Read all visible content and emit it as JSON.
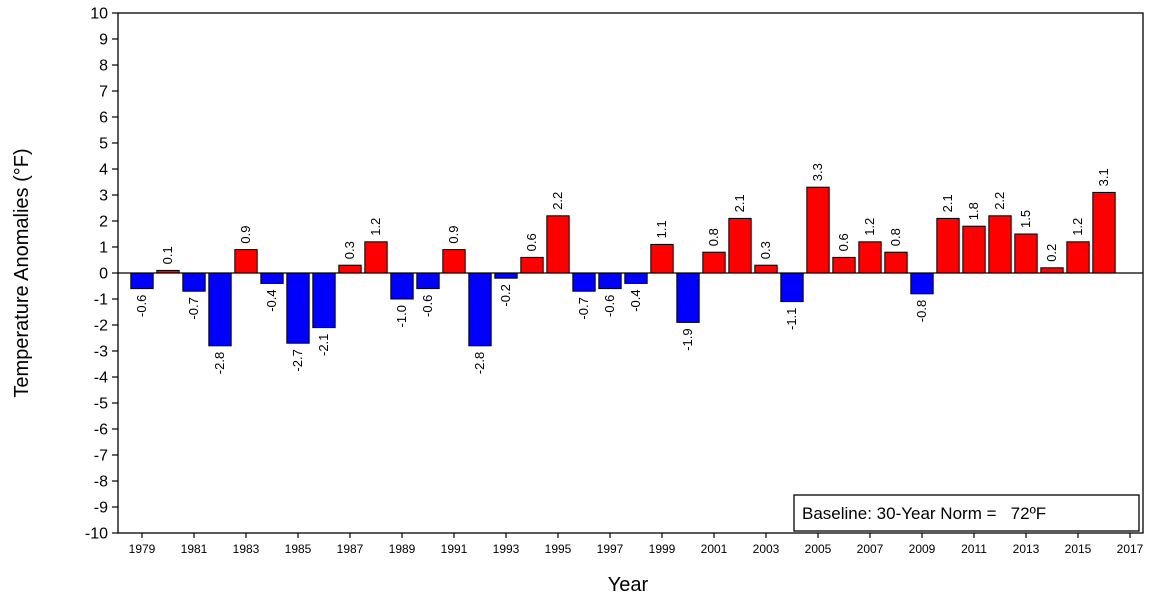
{
  "chart_data": {
    "type": "bar",
    "xlabel": "Year",
    "ylabel": "Temperature Anomalies (°F)",
    "ylim": [
      -10,
      10
    ],
    "yticks": [
      "10",
      "9",
      "8",
      "7",
      "6",
      "5",
      "4",
      "3",
      "2",
      "1",
      "0",
      "-1",
      "-2",
      "-3",
      "-4",
      "-5",
      "-6",
      "-7",
      "-8",
      "-9",
      "-10"
    ],
    "xticks": [
      "1979",
      "1981",
      "1983",
      "1985",
      "1987",
      "1989",
      "1991",
      "1993",
      "1995",
      "1997",
      "1999",
      "2001",
      "2003",
      "2005",
      "2007",
      "2009",
      "2011",
      "2013",
      "2015",
      "2017"
    ],
    "categories": [
      1979,
      1980,
      1981,
      1982,
      1983,
      1984,
      1985,
      1986,
      1987,
      1988,
      1989,
      1990,
      1991,
      1992,
      1993,
      1994,
      1995,
      1996,
      1997,
      1998,
      1999,
      2000,
      2001,
      2002,
      2003,
      2004,
      2005,
      2006,
      2007,
      2008,
      2009,
      2010,
      2011,
      2012,
      2013,
      2014,
      2015,
      2016
    ],
    "values": [
      -0.6,
      0.1,
      -0.7,
      -2.8,
      0.9,
      -0.4,
      -2.7,
      -2.1,
      0.3,
      1.2,
      -1.0,
      -0.6,
      0.9,
      -2.8,
      -0.2,
      0.6,
      2.2,
      -0.7,
      -0.6,
      -0.4,
      1.1,
      -1.9,
      0.8,
      2.1,
      0.3,
      -1.1,
      3.3,
      0.6,
      1.2,
      0.8,
      -0.8,
      2.1,
      1.8,
      2.2,
      1.5,
      0.2,
      1.2,
      3.1
    ],
    "labels": [
      "-0.6",
      "0.1",
      "-0.7",
      "-2.8",
      "0.9",
      "-0.4",
      "-2.7",
      "-2.1",
      "0.3",
      "1.2",
      "-1.0",
      "-0.6",
      "0.9",
      "-2.8",
      "-0.2",
      "0.6",
      "2.2",
      "-0.7",
      "-0.6",
      "-0.4",
      "1.1",
      "-1.9",
      "0.8",
      "2.1",
      "0.3",
      "-1.1",
      "3.3",
      "0.6",
      "1.2",
      "0.8",
      "-0.8",
      "2.1",
      "1.8",
      "2.2",
      "1.5",
      "0.2",
      "1.2",
      "3.1"
    ],
    "colors": {
      "positive": "#ff0000",
      "negative": "#0000ff",
      "outline": "#000000"
    },
    "annotation": "Baseline: 30-Year Norm =   72ºF",
    "grid": false
  }
}
